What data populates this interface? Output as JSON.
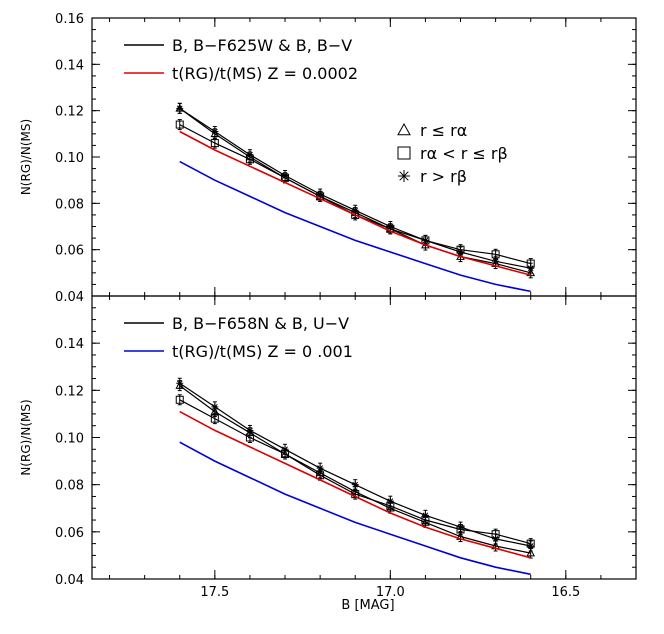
{
  "xaxis": {
    "label": "B [MAG]",
    "ticks": [
      "17.5",
      "17.0",
      "16.5"
    ],
    "tick_values": [
      17.5,
      17.0,
      16.5
    ],
    "range": [
      17.85,
      16.3
    ],
    "reversed": true
  },
  "chart_data": [
    {
      "type": "line",
      "panel": "top",
      "ylabel": "N(RG)/N(MS)",
      "ylim": [
        0.04,
        0.16
      ],
      "yticks": [
        "0.04",
        "0.06",
        "0.08",
        "0.10",
        "0.12",
        "0.14",
        "0.16"
      ],
      "legend": [
        {
          "label": "B, B−F625W  &  B, B−V",
          "color": "#000000"
        },
        {
          "label": "t(RG)/t(MS)   Z = 0.0002",
          "color": "#dd0000"
        }
      ],
      "symbol_legend": [
        {
          "symbol": "triangle",
          "label": "r  ≤  rα"
        },
        {
          "symbol": "square",
          "label": "rα  <  r  ≤ rβ"
        },
        {
          "symbol": "asterisk",
          "label": "r  >  rβ"
        }
      ],
      "x": [
        17.6,
        17.5,
        17.4,
        17.3,
        17.2,
        17.1,
        17.0,
        16.9,
        16.8,
        16.7,
        16.6
      ],
      "series": [
        {
          "symbol": "triangle",
          "color": "#000000",
          "values": [
            0.121,
            0.11,
            0.1,
            0.091,
            0.083,
            0.076,
            0.069,
            0.062,
            0.057,
            0.054,
            0.05
          ]
        },
        {
          "symbol": "square",
          "color": "#000000",
          "values": [
            0.114,
            0.106,
            0.099,
            0.091,
            0.083,
            0.075,
            0.069,
            0.064,
            0.06,
            0.058,
            0.054
          ]
        },
        {
          "symbol": "asterisk",
          "color": "#000000",
          "values": [
            0.121,
            0.111,
            0.101,
            0.092,
            0.084,
            0.077,
            0.07,
            0.064,
            0.059,
            0.055,
            0.052
          ]
        },
        {
          "symbol": "none",
          "color": "#dd0000",
          "values": [
            0.111,
            0.103,
            0.096,
            0.089,
            0.082,
            0.075,
            0.068,
            0.062,
            0.057,
            0.053,
            0.049
          ]
        },
        {
          "symbol": "none",
          "color": "#0000dd",
          "values": [
            0.098,
            0.09,
            0.083,
            0.076,
            0.07,
            0.064,
            0.059,
            0.054,
            0.049,
            0.045,
            0.042
          ]
        }
      ]
    },
    {
      "type": "line",
      "panel": "bottom",
      "ylabel": "N(RG)/N(MS)",
      "ylim": [
        0.04,
        0.16
      ],
      "yticks": [
        "0.04",
        "0.06",
        "0.08",
        "0.10",
        "0.12",
        "0.14",
        ""
      ],
      "legend": [
        {
          "label": "B, B−F658N  &  B, U−V",
          "color": "#000000"
        },
        {
          "label": "t(RG)/t(MS)    Z = 0 .001",
          "color": "#0000dd"
        }
      ],
      "x": [
        17.6,
        17.5,
        17.4,
        17.3,
        17.2,
        17.1,
        17.0,
        16.9,
        16.8,
        16.7,
        16.6
      ],
      "series": [
        {
          "symbol": "triangle",
          "color": "#000000",
          "values": [
            0.122,
            0.111,
            0.102,
            0.093,
            0.085,
            0.077,
            0.07,
            0.064,
            0.058,
            0.054,
            0.051
          ]
        },
        {
          "symbol": "square",
          "color": "#000000",
          "values": [
            0.116,
            0.108,
            0.1,
            0.093,
            0.084,
            0.076,
            0.071,
            0.065,
            0.061,
            0.059,
            0.055
          ]
        },
        {
          "symbol": "asterisk",
          "color": "#000000",
          "values": [
            0.123,
            0.113,
            0.103,
            0.095,
            0.087,
            0.08,
            0.073,
            0.067,
            0.062,
            0.057,
            0.054
          ]
        },
        {
          "symbol": "none",
          "color": "#dd0000",
          "values": [
            0.111,
            0.103,
            0.096,
            0.089,
            0.082,
            0.075,
            0.068,
            0.062,
            0.057,
            0.053,
            0.049
          ]
        },
        {
          "symbol": "none",
          "color": "#0000dd",
          "values": [
            0.098,
            0.09,
            0.083,
            0.076,
            0.07,
            0.064,
            0.059,
            0.054,
            0.049,
            0.045,
            0.042
          ]
        }
      ]
    }
  ]
}
